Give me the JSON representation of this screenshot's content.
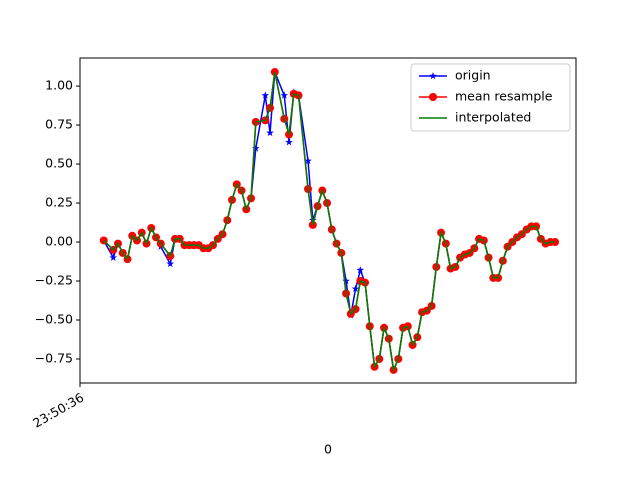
{
  "chart_data": {
    "type": "line",
    "x": [
      5,
      7,
      8,
      9,
      10,
      11,
      12,
      13,
      14,
      15,
      16,
      17,
      19,
      20,
      21,
      22,
      23,
      24,
      25,
      26,
      27,
      28,
      29,
      30,
      31,
      32,
      33,
      34,
      35,
      36,
      37,
      39,
      40,
      41,
      43,
      44,
      45,
      46,
      48,
      49,
      50,
      51,
      52,
      53,
      54,
      55,
      56,
      57,
      58,
      59,
      60,
      61,
      62,
      63,
      64,
      65,
      66,
      67,
      68,
      69,
      70,
      71,
      72,
      73,
      74,
      75,
      76,
      77,
      78,
      79,
      80,
      81,
      82,
      83,
      84,
      85,
      86,
      87,
      88,
      89,
      90,
      91,
      92,
      93,
      94,
      95,
      96,
      97,
      98,
      99,
      100
    ],
    "series": [
      {
        "name": "origin",
        "color": "#0000ff",
        "marker": "star",
        "values": [
          0.01,
          -0.1,
          -0.01,
          -0.07,
          -0.11,
          0.04,
          0.01,
          0.06,
          -0.01,
          0.09,
          0.03,
          -0.03,
          -0.14,
          0.02,
          0.02,
          -0.02,
          -0.02,
          -0.02,
          -0.02,
          -0.04,
          -0.04,
          -0.02,
          0.02,
          0.05,
          0.14,
          0.27,
          0.37,
          0.33,
          0.21,
          0.28,
          0.6,
          0.94,
          0.7,
          1.09,
          0.94,
          0.64,
          0.96,
          0.94,
          0.52,
          0.14,
          0.23,
          0.33,
          0.25,
          0.08,
          -0.01,
          -0.07,
          -0.25,
          -0.47,
          -0.3,
          -0.18,
          -0.26,
          -0.54,
          -0.8,
          -0.75,
          -0.55,
          -0.62,
          -0.82,
          -0.75,
          -0.55,
          -0.54,
          -0.66,
          -0.61,
          -0.45,
          -0.44,
          -0.41,
          -0.16,
          0.06,
          -0.01,
          -0.17,
          -0.16,
          -0.1,
          -0.08,
          -0.07,
          -0.04,
          0.02,
          0.01,
          -0.1,
          -0.23,
          -0.23,
          -0.12,
          -0.03,
          0.0,
          0.03,
          0.05,
          0.08,
          0.1,
          0.1,
          0.02,
          -0.01,
          0.0,
          0.0
        ]
      },
      {
        "name": "mean resample",
        "color": "#ff0000",
        "marker": "circle",
        "values": [
          0.01,
          -0.05,
          -0.01,
          -0.07,
          -0.11,
          0.04,
          0.01,
          0.06,
          -0.01,
          0.09,
          0.03,
          -0.01,
          -0.09,
          0.02,
          0.02,
          -0.02,
          -0.02,
          -0.02,
          -0.02,
          -0.04,
          -0.04,
          -0.02,
          0.02,
          0.05,
          0.14,
          0.27,
          0.37,
          0.33,
          0.21,
          0.28,
          0.77,
          0.78,
          0.86,
          1.09,
          0.79,
          0.69,
          0.95,
          0.94,
          0.34,
          0.11,
          0.23,
          0.33,
          0.25,
          0.08,
          -0.01,
          -0.07,
          -0.33,
          -0.46,
          -0.43,
          -0.25,
          -0.26,
          -0.54,
          -0.8,
          -0.75,
          -0.55,
          -0.62,
          -0.82,
          -0.75,
          -0.55,
          -0.54,
          -0.66,
          -0.61,
          -0.45,
          -0.44,
          -0.41,
          -0.16,
          0.06,
          -0.01,
          -0.17,
          -0.16,
          -0.1,
          -0.08,
          -0.07,
          -0.04,
          0.02,
          0.01,
          -0.1,
          -0.23,
          -0.23,
          -0.12,
          -0.03,
          0.0,
          0.03,
          0.05,
          0.08,
          0.1,
          0.1,
          0.02,
          -0.01,
          0.0,
          0.0
        ]
      },
      {
        "name": "interpolated",
        "color": "#008000",
        "marker": "none",
        "values": [
          0.01,
          -0.05,
          -0.01,
          -0.07,
          -0.11,
          0.04,
          0.01,
          0.06,
          -0.01,
          0.09,
          0.03,
          -0.01,
          -0.09,
          0.02,
          0.02,
          -0.02,
          -0.02,
          -0.02,
          -0.02,
          -0.04,
          -0.04,
          -0.02,
          0.02,
          0.05,
          0.14,
          0.27,
          0.37,
          0.33,
          0.21,
          0.28,
          0.77,
          0.78,
          0.86,
          1.09,
          0.79,
          0.69,
          0.95,
          0.94,
          0.34,
          0.11,
          0.23,
          0.33,
          0.25,
          0.08,
          -0.01,
          -0.07,
          -0.33,
          -0.46,
          -0.43,
          -0.25,
          -0.26,
          -0.54,
          -0.8,
          -0.75,
          -0.55,
          -0.62,
          -0.82,
          -0.75,
          -0.55,
          -0.54,
          -0.66,
          -0.61,
          -0.45,
          -0.44,
          -0.41,
          -0.16,
          0.06,
          -0.01,
          -0.17,
          -0.16,
          -0.1,
          -0.08,
          -0.07,
          -0.04,
          0.02,
          0.01,
          -0.1,
          -0.23,
          -0.23,
          -0.12,
          -0.03,
          0.0,
          0.03,
          0.05,
          0.08,
          0.1,
          0.1,
          0.02,
          -0.01,
          0.0,
          0.0
        ]
      }
    ],
    "xlabel": "0",
    "xlim": [
      0,
      104.4
    ],
    "xticks": [
      {
        "value": 0,
        "label": "23:50:36"
      }
    ],
    "ylim": [
      -0.904,
      1.18
    ],
    "yticks": [
      {
        "value": -0.75,
        "label": "−0.75"
      },
      {
        "value": -0.5,
        "label": "−0.50"
      },
      {
        "value": -0.25,
        "label": "−0.25"
      },
      {
        "value": 0,
        "label": "0.00"
      },
      {
        "value": 0.25,
        "label": "0.25"
      },
      {
        "value": 0.5,
        "label": "0.50"
      },
      {
        "value": 0.75,
        "label": "0.75"
      },
      {
        "value": 1,
        "label": "1.00"
      }
    ],
    "legend": "upper right"
  }
}
